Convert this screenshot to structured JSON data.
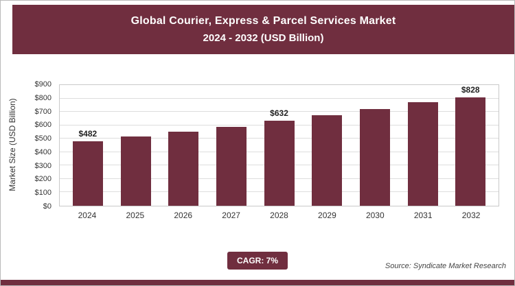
{
  "header": {
    "title_line1": "Global Courier, Express & Parcel Services Market",
    "title_line2": "2024 - 2032 (USD Billion)"
  },
  "chart_data": {
    "type": "bar",
    "title": "Global Courier, Express & Parcel Services Market 2024 - 2032 (USD Billion)",
    "categories": [
      "2024",
      "2025",
      "2026",
      "2027",
      "2028",
      "2029",
      "2030",
      "2031",
      "2032"
    ],
    "values": [
      482,
      516,
      552,
      590,
      632,
      676,
      723,
      774,
      828
    ],
    "data_labels": [
      "$482",
      "",
      "",
      "",
      "$632",
      "",
      "",
      "",
      "$828"
    ],
    "xlabel": "",
    "ylabel": "Market Size (USD Billion)",
    "ylim": [
      0,
      900
    ],
    "ytick_step": 100,
    "ytick_labels": [
      "$0",
      "$100",
      "$200",
      "$300",
      "$400",
      "$500",
      "$600",
      "$700",
      "$800",
      "$900"
    ],
    "grid": "horizontal",
    "legend": "none",
    "bar_color": "#702e3f"
  },
  "footer": {
    "cagr_label": "CAGR: 7%",
    "source": "Source: Syndicate Market Research"
  }
}
